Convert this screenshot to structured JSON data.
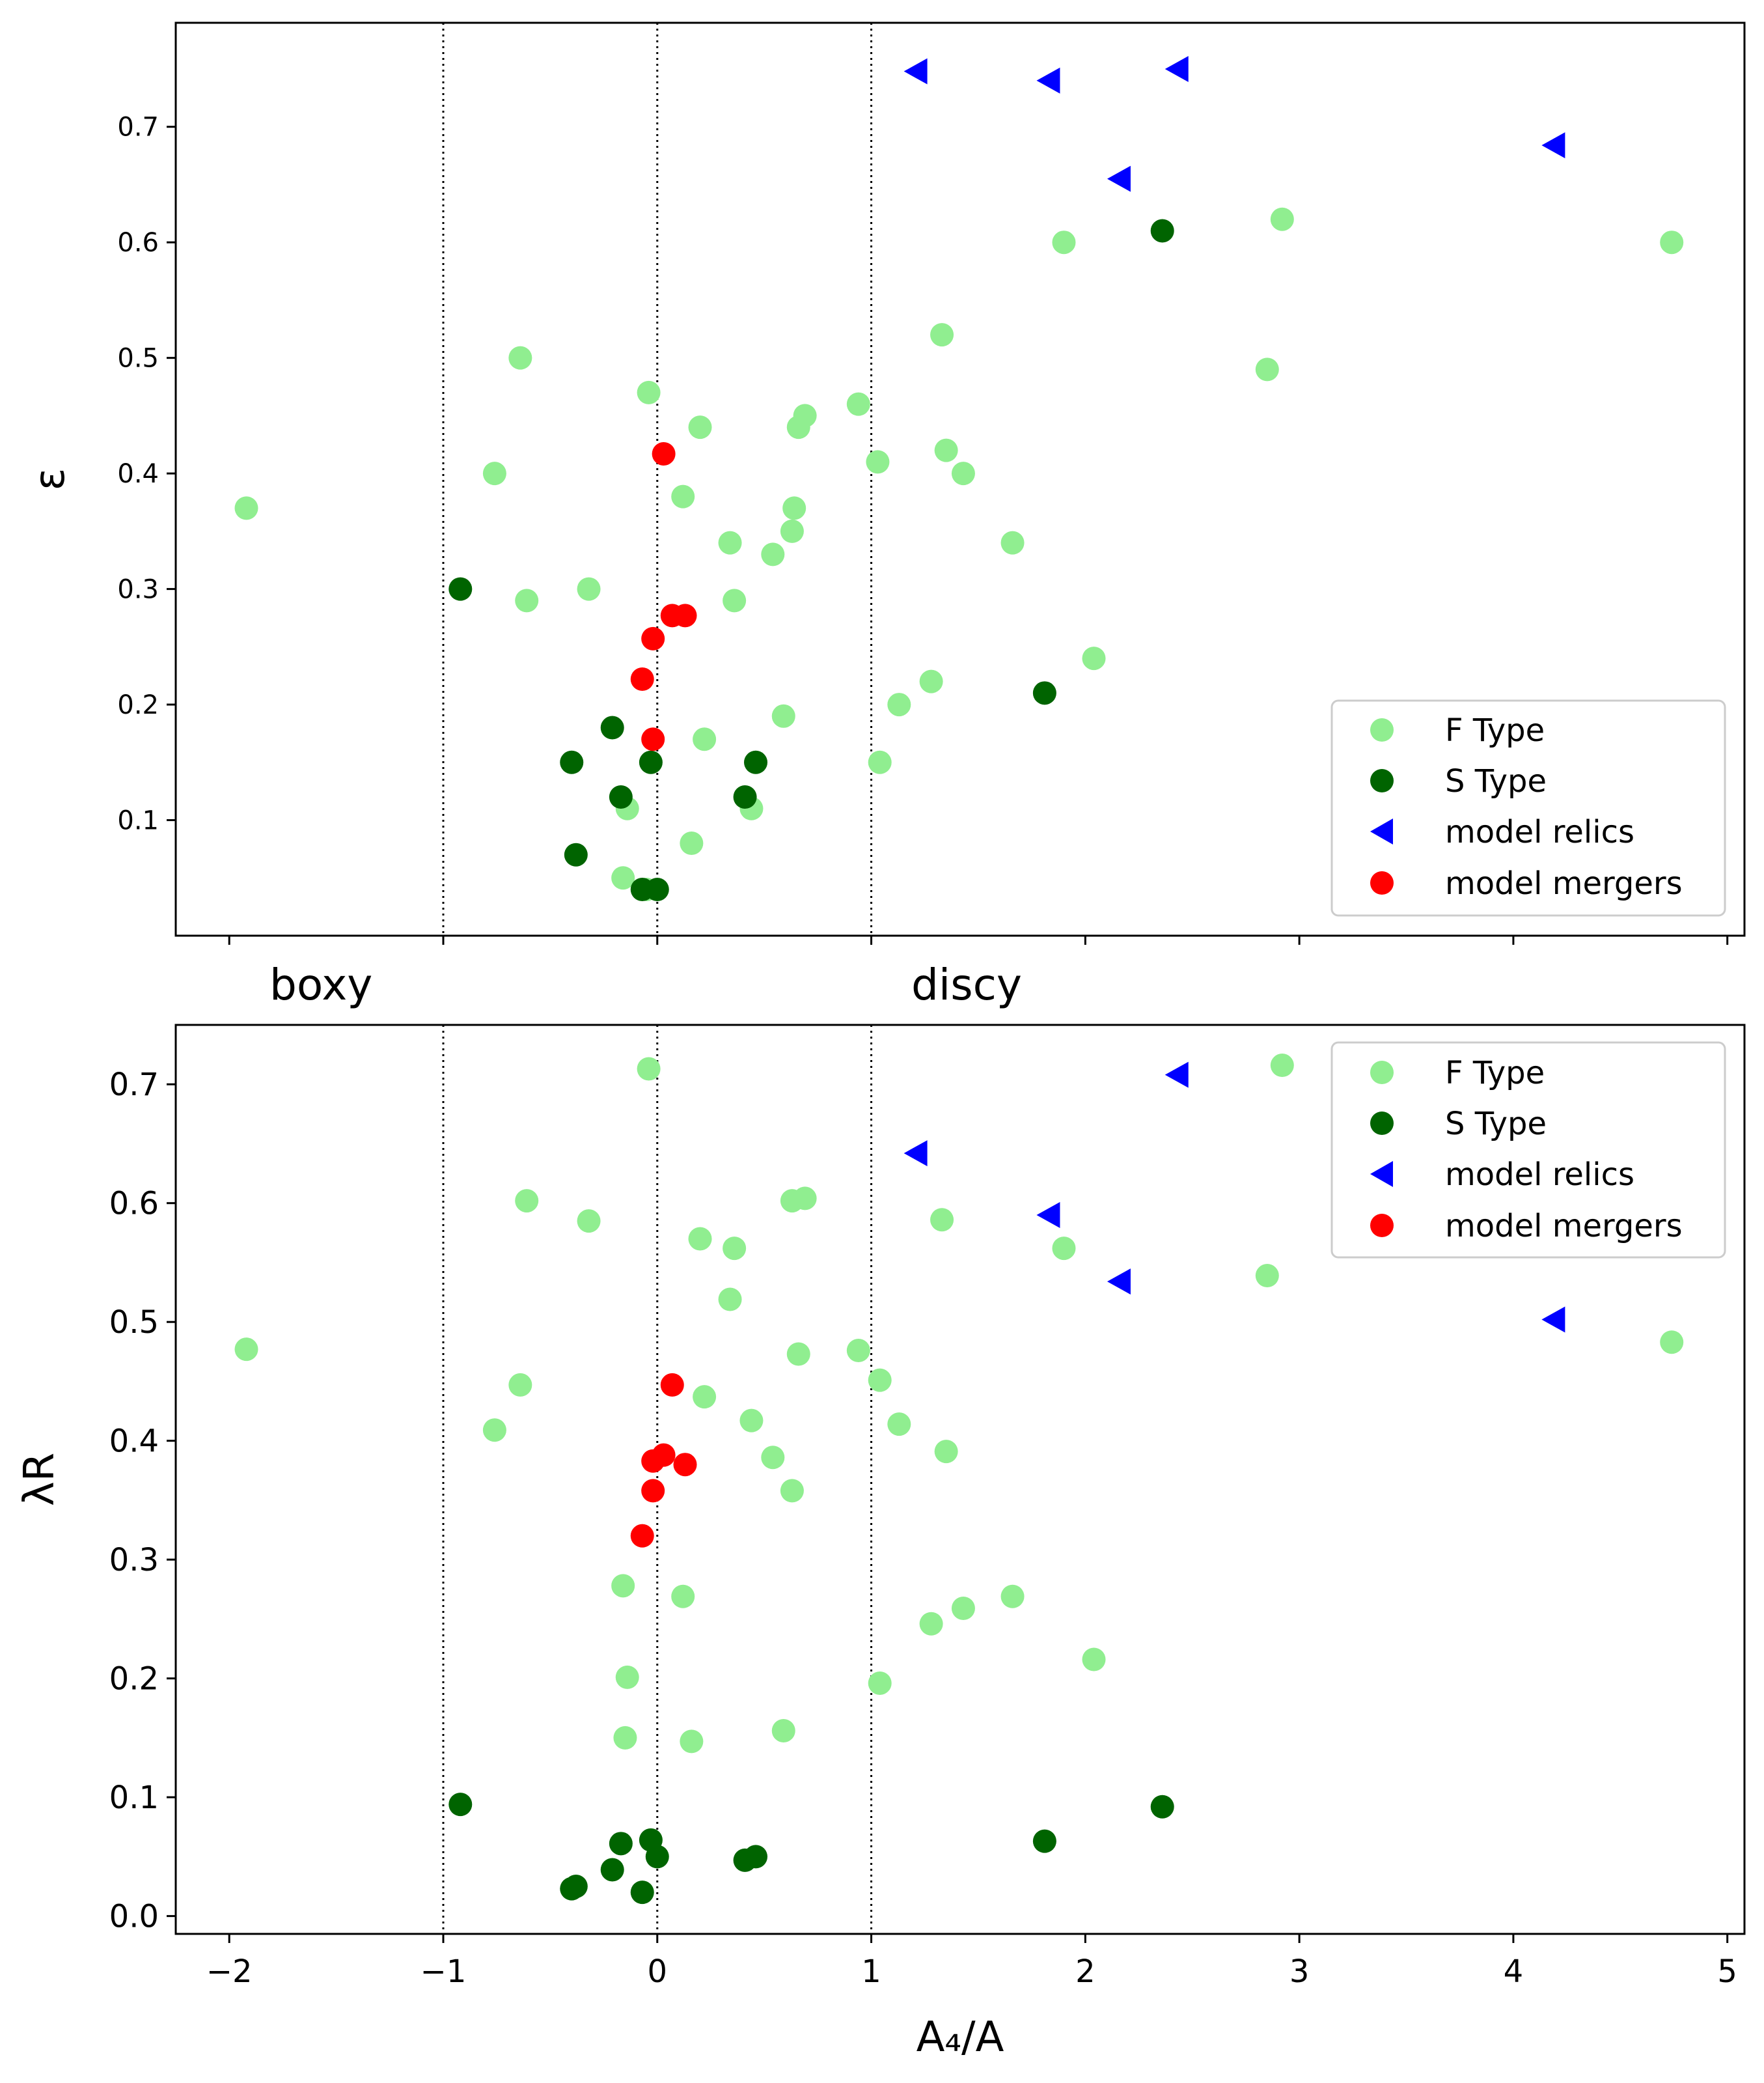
{
  "chart_data": [
    {
      "type": "scatter",
      "ylabel": "ε",
      "xlim": [
        -2.25,
        5.08
      ],
      "ylim": [
        0.0,
        0.79
      ],
      "xticks": [
        -2,
        -1,
        0,
        1,
        2,
        3,
        4,
        5
      ],
      "yticks": [
        {
          "value": 0.1,
          "label": "0.1"
        },
        {
          "value": 0.2,
          "label": "0.2"
        },
        {
          "value": 0.3,
          "label": "0.3"
        },
        {
          "value": 0.4,
          "label": "0.4"
        },
        {
          "value": 0.5,
          "label": "0.5"
        },
        {
          "value": 0.6,
          "label": "0.6"
        },
        {
          "value": 0.7,
          "label": "0.7"
        }
      ],
      "vlines": [
        -1,
        0,
        1
      ],
      "legend": {
        "position": "lower right"
      },
      "series": [
        {
          "name": "F Type",
          "color": "#90ee90",
          "marker": "circle",
          "points": [
            [
              -1.92,
              0.37
            ],
            [
              -0.64,
              0.5
            ],
            [
              -0.76,
              0.4
            ],
            [
              -0.61,
              0.29
            ],
            [
              -0.32,
              0.3
            ],
            [
              -0.04,
              0.47
            ],
            [
              0.2,
              0.44
            ],
            [
              0.12,
              0.38
            ],
            [
              0.34,
              0.34
            ],
            [
              0.36,
              0.29
            ],
            [
              0.54,
              0.33
            ],
            [
              0.63,
              0.35
            ],
            [
              0.64,
              0.37
            ],
            [
              0.66,
              0.44
            ],
            [
              0.69,
              0.45
            ],
            [
              0.94,
              0.46
            ],
            [
              1.03,
              0.41
            ],
            [
              1.35,
              0.42
            ],
            [
              1.43,
              0.4
            ],
            [
              1.33,
              0.52
            ],
            [
              1.66,
              0.34
            ],
            [
              1.9,
              0.6
            ],
            [
              2.92,
              0.62
            ],
            [
              2.85,
              0.49
            ],
            [
              4.74,
              0.6
            ],
            [
              2.04,
              0.24
            ],
            [
              1.28,
              0.22
            ],
            [
              1.13,
              0.2
            ],
            [
              1.04,
              0.15
            ],
            [
              0.59,
              0.19
            ],
            [
              0.22,
              0.17
            ],
            [
              0.44,
              0.11
            ],
            [
              0.16,
              0.08
            ],
            [
              -0.14,
              0.11
            ],
            [
              -0.16,
              0.05
            ],
            [
              -0.05,
              0.04
            ]
          ]
        },
        {
          "name": "S Type",
          "color": "#006400",
          "marker": "circle",
          "points": [
            [
              -0.92,
              0.3
            ],
            [
              -0.4,
              0.15
            ],
            [
              -0.21,
              0.18
            ],
            [
              -0.17,
              0.12
            ],
            [
              -0.03,
              0.15
            ],
            [
              -0.38,
              0.07
            ],
            [
              -0.07,
              0.04
            ],
            [
              0.0,
              0.04
            ],
            [
              0.46,
              0.15
            ],
            [
              0.41,
              0.12
            ],
            [
              1.81,
              0.21
            ],
            [
              2.36,
              0.61
            ]
          ]
        },
        {
          "name": "model relics",
          "color": "#0000ff",
          "marker": "triangle-left",
          "points": [
            [
              1.21,
              0.748
            ],
            [
              1.83,
              0.74
            ],
            [
              2.43,
              0.75
            ],
            [
              2.16,
              0.655
            ],
            [
              4.19,
              0.684
            ]
          ]
        },
        {
          "name": "model mergers",
          "color": "#ff0000",
          "marker": "circle",
          "points": [
            [
              0.03,
              0.417
            ],
            [
              0.07,
              0.277
            ],
            [
              0.13,
              0.277
            ],
            [
              -0.02,
              0.257
            ],
            [
              -0.07,
              0.222
            ],
            [
              -0.02,
              0.17
            ]
          ]
        }
      ],
      "annotations": [
        "boxy",
        "discy"
      ]
    },
    {
      "type": "scatter",
      "xlabel": "A₄/A",
      "ylabel": "λR",
      "xlim": [
        -2.25,
        5.08
      ],
      "ylim": [
        -0.015,
        0.75
      ],
      "xticks": [
        {
          "value": -2,
          "label": "−2"
        },
        {
          "value": -1,
          "label": "−1"
        },
        {
          "value": 0,
          "label": "0"
        },
        {
          "value": 1,
          "label": "1"
        },
        {
          "value": 2,
          "label": "2"
        },
        {
          "value": 3,
          "label": "3"
        },
        {
          "value": 4,
          "label": "4"
        },
        {
          "value": 5,
          "label": "5"
        }
      ],
      "yticks": [
        {
          "value": 0.0,
          "label": "0.0"
        },
        {
          "value": 0.1,
          "label": "0.1"
        },
        {
          "value": 0.2,
          "label": "0.2"
        },
        {
          "value": 0.3,
          "label": "0.3"
        },
        {
          "value": 0.4,
          "label": "0.4"
        },
        {
          "value": 0.5,
          "label": "0.5"
        },
        {
          "value": 0.6,
          "label": "0.6"
        },
        {
          "value": 0.7,
          "label": "0.7"
        }
      ],
      "vlines": [
        -1,
        0,
        1
      ],
      "legend": {
        "position": "upper right"
      },
      "series": [
        {
          "name": "F Type",
          "color": "#90ee90",
          "marker": "circle",
          "points": [
            [
              -1.92,
              0.477
            ],
            [
              -0.61,
              0.602
            ],
            [
              -0.64,
              0.447
            ],
            [
              -0.76,
              0.409
            ],
            [
              -0.32,
              0.585
            ],
            [
              -0.04,
              0.713
            ],
            [
              0.2,
              0.57
            ],
            [
              0.36,
              0.562
            ],
            [
              0.34,
              0.519
            ],
            [
              0.22,
              0.437
            ],
            [
              0.44,
              0.417
            ],
            [
              0.54,
              0.386
            ],
            [
              0.63,
              0.358
            ],
            [
              0.63,
              0.602
            ],
            [
              0.69,
              0.604
            ],
            [
              0.66,
              0.473
            ],
            [
              0.94,
              0.476
            ],
            [
              1.04,
              0.451
            ],
            [
              1.13,
              0.414
            ],
            [
              1.35,
              0.391
            ],
            [
              1.33,
              0.586
            ],
            [
              1.9,
              0.562
            ],
            [
              2.92,
              0.716
            ],
            [
              2.85,
              0.539
            ],
            [
              4.74,
              0.483
            ],
            [
              2.04,
              0.216
            ],
            [
              1.66,
              0.269
            ],
            [
              1.43,
              0.259
            ],
            [
              1.28,
              0.246
            ],
            [
              1.04,
              0.196
            ],
            [
              0.59,
              0.156
            ],
            [
              0.16,
              0.147
            ],
            [
              0.12,
              0.269
            ],
            [
              -0.16,
              0.278
            ],
            [
              -0.14,
              0.201
            ],
            [
              -0.15,
              0.15
            ]
          ]
        },
        {
          "name": "S Type",
          "color": "#006400",
          "marker": "circle",
          "points": [
            [
              -0.92,
              0.094
            ],
            [
              -0.4,
              0.023
            ],
            [
              -0.38,
              0.025
            ],
            [
              -0.21,
              0.039
            ],
            [
              -0.17,
              0.061
            ],
            [
              -0.03,
              0.064
            ],
            [
              0.0,
              0.05
            ],
            [
              -0.07,
              0.02
            ],
            [
              0.41,
              0.047
            ],
            [
              0.46,
              0.05
            ],
            [
              1.81,
              0.063
            ],
            [
              2.36,
              0.092
            ]
          ]
        },
        {
          "name": "model relics",
          "color": "#0000ff",
          "marker": "triangle-left",
          "points": [
            [
              1.21,
              0.642
            ],
            [
              2.43,
              0.708
            ],
            [
              1.83,
              0.59
            ],
            [
              2.16,
              0.534
            ],
            [
              4.19,
              0.502
            ]
          ]
        },
        {
          "name": "model mergers",
          "color": "#ff0000",
          "marker": "circle",
          "points": [
            [
              0.07,
              0.447
            ],
            [
              0.03,
              0.388
            ],
            [
              -0.02,
              0.383
            ],
            [
              0.13,
              0.38
            ],
            [
              -0.02,
              0.358
            ],
            [
              -0.07,
              0.32
            ]
          ]
        }
      ]
    }
  ]
}
